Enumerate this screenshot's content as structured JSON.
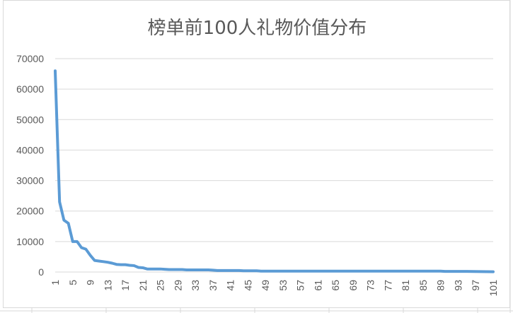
{
  "chart_data": {
    "type": "line",
    "title": "榜单前100人礼物价值分布",
    "xlabel": "",
    "ylabel": "",
    "ylim": [
      0,
      70000
    ],
    "yticks": [
      0,
      10000,
      20000,
      30000,
      40000,
      50000,
      60000,
      70000
    ],
    "x_tick_labels": [
      1,
      5,
      9,
      13,
      17,
      21,
      25,
      29,
      33,
      37,
      41,
      45,
      49,
      53,
      57,
      61,
      65,
      69,
      73,
      77,
      81,
      85,
      89,
      93,
      97,
      101
    ],
    "x_range": [
      1,
      101
    ],
    "grid": true,
    "legend": "none",
    "line_color": "#5b9bd5",
    "series": [
      {
        "x": [
          1,
          2,
          3,
          4,
          5,
          6,
          7,
          8,
          9,
          10,
          11,
          12,
          13,
          14,
          15,
          16,
          17,
          18,
          19,
          20,
          21,
          22,
          23,
          24,
          25,
          26,
          27,
          28,
          29,
          30,
          31,
          32,
          33,
          34,
          35,
          36,
          37,
          38,
          39,
          40,
          41,
          42,
          43,
          44,
          45,
          46,
          47,
          48,
          49,
          50,
          55,
          60,
          65,
          70,
          75,
          80,
          85,
          89,
          90,
          95,
          101
        ],
        "values": [
          66000,
          23000,
          17000,
          16000,
          10000,
          10000,
          8000,
          7500,
          5500,
          3800,
          3600,
          3400,
          3200,
          2900,
          2500,
          2400,
          2400,
          2200,
          2100,
          1500,
          1400,
          1000,
          1000,
          1000,
          1000,
          900,
          800,
          800,
          800,
          800,
          700,
          700,
          700,
          700,
          700,
          700,
          600,
          500,
          500,
          500,
          500,
          500,
          500,
          400,
          400,
          400,
          400,
          300,
          300,
          300,
          300,
          300,
          300,
          300,
          300,
          300,
          300,
          300,
          200,
          200,
          100
        ]
      }
    ]
  }
}
